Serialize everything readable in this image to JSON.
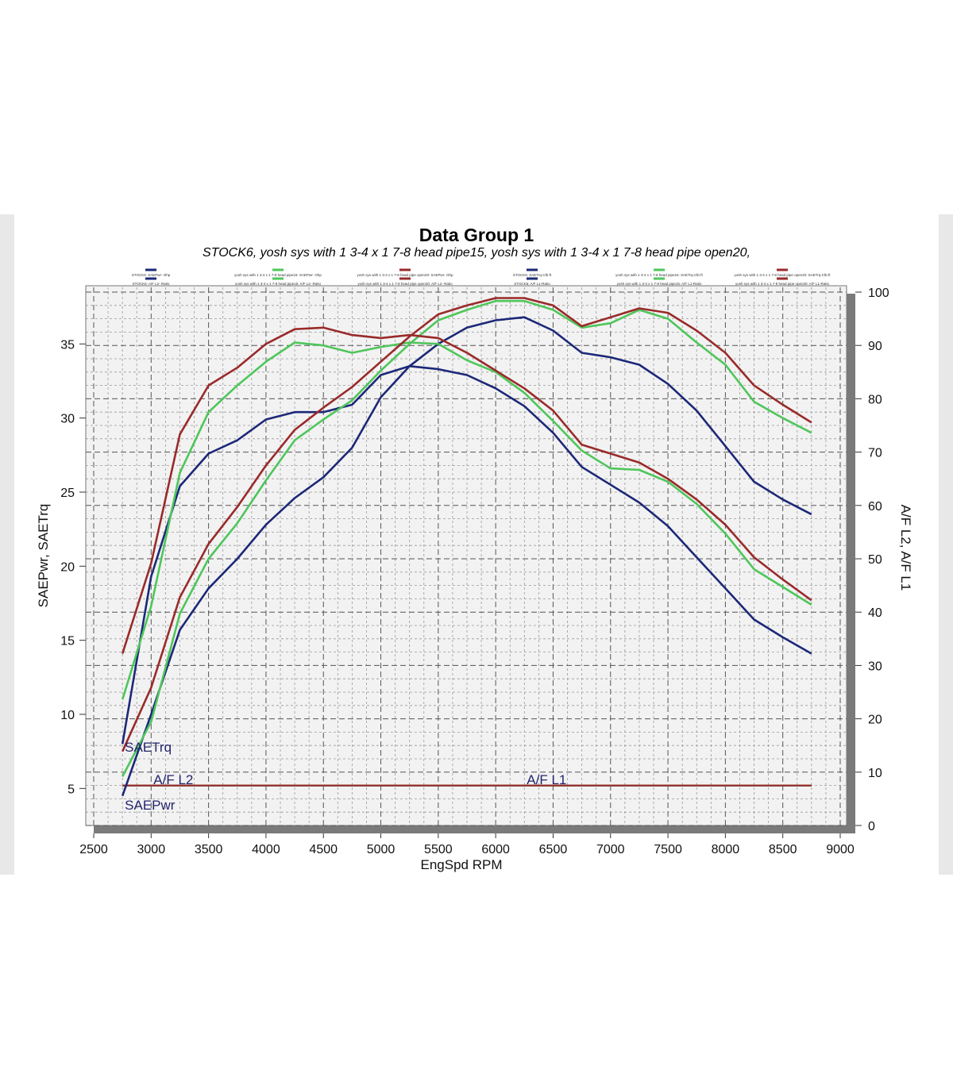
{
  "chart_data": {
    "type": "line",
    "title": "Data Group 1",
    "subtitle": "STOCK6, yosh sys with 1 3-4 x 1 7-8 head pipe15, yosh sys with 1 3-4 x 1 7-8 head pipe open20,",
    "xlabel": "EngSpd  RPM",
    "ylabel_left": "SAEPwr, SAETrq",
    "ylabel_right": "A/F L2, A/F L1",
    "xlim": [
      2500,
      9000
    ],
    "ylim_left": [
      2.5,
      38.5
    ],
    "ylim_right": [
      0,
      100
    ],
    "x_ticks": [
      2500,
      3000,
      3500,
      4000,
      4500,
      5000,
      5500,
      6000,
      6500,
      7000,
      7500,
      8000,
      8500,
      9000
    ],
    "y_ticks_left": [
      5,
      10,
      15,
      20,
      25,
      30,
      35
    ],
    "y_ticks_right": [
      0,
      10,
      20,
      30,
      40,
      50,
      60,
      70,
      80,
      90,
      100
    ],
    "grid": true,
    "x": [
      2750,
      3000,
      3250,
      3500,
      3750,
      4000,
      4250,
      4500,
      4750,
      5000,
      5250,
      5500,
      5750,
      6000,
      6250,
      6500,
      6750,
      7000,
      7250,
      7500,
      7750,
      8000,
      8250,
      8500,
      8750
    ],
    "series": [
      {
        "name": "STOCK6: SAEPwr- Ohp",
        "color": "#1c2878",
        "axis": "left",
        "values": [
          4.5,
          10,
          15.7,
          18.5,
          20.5,
          22.8,
          24.6,
          26,
          28,
          31.4,
          33.5,
          35,
          36.1,
          36.6,
          36.8,
          35.9,
          34.4,
          34.1,
          33.6,
          32.3,
          30.5,
          28.1,
          25.7,
          24.5,
          23.5
        ]
      },
      {
        "name": "STOCK6: SAETrq-Clb-ft",
        "color": "#1c2878",
        "axis": "left",
        "values": [
          8,
          19.3,
          25.4,
          27.6,
          28.5,
          29.9,
          30.4,
          30.4,
          30.9,
          32.9,
          33.5,
          33.3,
          32.9,
          32,
          30.8,
          29,
          26.7,
          25.5,
          24.3,
          22.7,
          20.6,
          18.5,
          16.4,
          15.2,
          14.1
        ]
      },
      {
        "name": "yosh sys with 1 3-4 x 1 7-8 head pipe15: SAEPwr- Ohp",
        "color": "#4ec65a",
        "axis": "left",
        "values": [
          5.8,
          9.5,
          16.8,
          20.5,
          22.9,
          25.8,
          28.5,
          29.9,
          31.2,
          33.2,
          35,
          36.6,
          37.3,
          37.9,
          37.9,
          37.3,
          36.1,
          36.4,
          37.3,
          36.7,
          35.1,
          33.6,
          31.1,
          30,
          29
        ]
      },
      {
        "name": "yosh sys with 1 3-4 x 1 7-8 head pipe15: SAETrq-Clb-ft",
        "color": "#4ec65a",
        "axis": "left",
        "values": [
          11,
          17.3,
          26.3,
          30.4,
          32.2,
          33.8,
          35.1,
          34.9,
          34.4,
          34.8,
          35.1,
          35,
          33.9,
          33.1,
          31.7,
          29.8,
          27.8,
          26.6,
          26.5,
          25.7,
          24.2,
          22.2,
          19.8,
          18.6,
          17.4
        ]
      },
      {
        "name": "yosh sys with 1 3-4 x 1 7-8 head pipe open20: SAEPwr- Ohp",
        "color": "#9a2a2a",
        "axis": "left",
        "values": [
          7.5,
          11.8,
          17.9,
          21.5,
          24,
          26.8,
          29.2,
          30.7,
          32.1,
          33.8,
          35.5,
          37,
          37.6,
          38.1,
          38.1,
          37.6,
          36.2,
          36.8,
          37.4,
          37.1,
          35.9,
          34.4,
          32.2,
          30.9,
          29.7
        ]
      },
      {
        "name": "yosh sys with 1 3-4 x 1 7-8 head pipe open20: SAETrq-Clb-ft",
        "color": "#9a2a2a",
        "axis": "left",
        "values": [
          14.1,
          20.2,
          28.9,
          32.2,
          33.4,
          35,
          36,
          36.1,
          35.6,
          35.4,
          35.6,
          35.4,
          34.4,
          33.2,
          32,
          30.5,
          28.2,
          27.6,
          27,
          25.9,
          24.5,
          22.8,
          20.6,
          19.1,
          17.7
        ]
      }
    ],
    "af_series": [
      {
        "name": "STOCK6: A/F L2- Ratio",
        "color": "#1c2878",
        "value": 7.5
      },
      {
        "name": "STOCK6: A/F L1-Ratio",
        "color": "#1c2878",
        "value": 7.5
      },
      {
        "name": "yosh sys with 1 3-4 x 1 7-8 head pipe15: A/F L2- Ratio",
        "color": "#4ec65a",
        "value": 7.5
      },
      {
        "name": "yosh sys with 1 3-4 x 1 7-8 head pipe15: A/F L1-Ratio",
        "color": "#4ec65a",
        "value": 7.5
      },
      {
        "name": "yosh sys with 1 3-4 x 1 7-8 head pipe open20: A/F L2- Ratio",
        "color": "#9a2a2a",
        "value": 7.5
      },
      {
        "name": "yosh sys with 1 3-4 x 1 7-8 head pipe open20: A/F L1-Ratio",
        "color": "#9a2a2a",
        "value": 7.5
      }
    ],
    "annotations": [
      {
        "text": "SAETrq",
        "x": 2750,
        "y": 7.8
      },
      {
        "text": "SAEPwr",
        "x": 2750,
        "y": 3.9
      },
      {
        "text": "A/F L2",
        "x": 3000,
        "y": 5.6
      },
      {
        "text": "A/F L1",
        "x": 6250,
        "y": 5.6
      }
    ]
  }
}
